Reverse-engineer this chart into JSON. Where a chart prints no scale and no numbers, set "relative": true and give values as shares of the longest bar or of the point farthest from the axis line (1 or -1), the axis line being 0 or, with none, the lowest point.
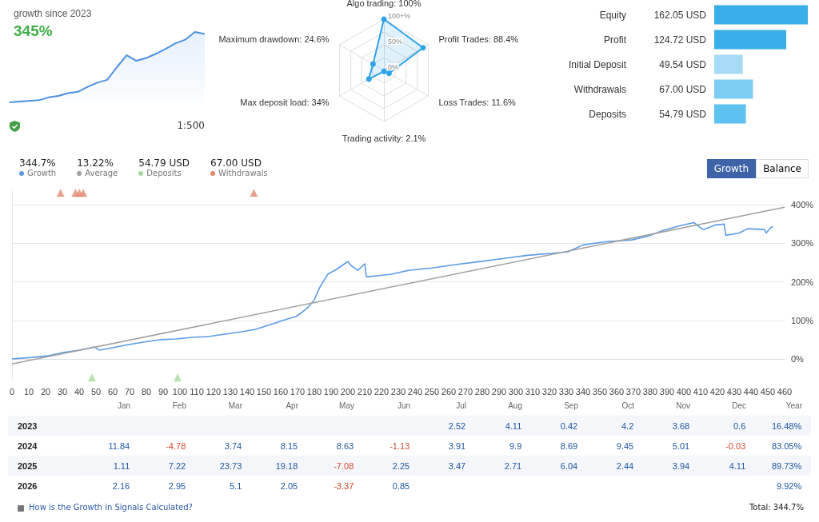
{
  "chart_data": [
    {
      "type": "area",
      "title": "growth since 2023",
      "subtitle": "345%",
      "relative": true,
      "color": "#4a90e2",
      "annotations": [
        "1:500"
      ],
      "categories": [
        null,
        null,
        null,
        null,
        null,
        null,
        null,
        null,
        null,
        null,
        null,
        null,
        null,
        null,
        null,
        null,
        null,
        null,
        null,
        null,
        null
      ],
      "values": [
        0,
        0.01,
        0.02,
        0.03,
        0.07,
        0.09,
        0.13,
        0.15,
        0.22,
        0.28,
        0.32,
        0.5,
        0.67,
        0.59,
        0.63,
        0.69,
        0.76,
        0.84,
        0.89,
        1,
        0.97
      ]
    },
    {
      "type": "radar",
      "categories": [
        "Algo trading: 100%",
        "Profit Trades: 88.4%",
        "Loss Trades: 11.6%",
        "Trading activity: 2.1%",
        "Max deposit load: 34%",
        "Maximum drawdown: 24.6%"
      ],
      "series": [
        {
          "color": "#2ea3e8",
          "values": [
            100,
            88.4,
            11.6,
            2.1,
            34,
            24.6
          ]
        }
      ],
      "ylim": [
        0,
        100
      ],
      "yticks": [
        {
          "value": 0,
          "label": "0%"
        },
        {
          "value": 50,
          "label": "50%"
        },
        {
          "value": 100,
          "label": "100+%"
        }
      ],
      "marker": "circle"
    },
    {
      "type": "bar",
      "orientation": "horizontal",
      "categories": [
        "Equity",
        "Profit",
        "Initial Deposit",
        "Withdrawals",
        "Deposits"
      ],
      "values": [
        162.05,
        124.72,
        49.54,
        67.0,
        54.79
      ],
      "colors": [
        "#3aaee9",
        "#3aaee9",
        "#a6dcf6",
        "#7dcdf3",
        "#5ec2f0"
      ],
      "value_labels": [
        "162.05 USD",
        "124.72 USD",
        "49.54 USD",
        "67.00 USD",
        "54.79 USD"
      ]
    },
    {
      "type": "line",
      "legend": "top left",
      "grid": "y",
      "line_style": "solid",
      "annotations": [
        "344.7%",
        "13.22%",
        "54.79 USD",
        "67.00 USD",
        "Growth",
        "Balance"
      ],
      "xlim": [
        0,
        460
      ],
      "xticks": [
        0,
        10,
        20,
        30,
        40,
        50,
        60,
        70,
        80,
        90,
        100,
        110,
        120,
        130,
        140,
        150,
        160,
        170,
        180,
        190,
        200,
        210,
        220,
        230,
        240,
        250,
        260,
        270,
        280,
        290,
        300,
        310,
        320,
        330,
        340,
        350,
        360,
        370,
        380,
        390,
        400,
        410,
        420,
        430,
        440,
        450,
        460
      ],
      "ylim": [
        -56,
        440
      ],
      "yticks": [
        {
          "value": 0,
          "label": "0%"
        },
        {
          "value": 100,
          "label": "100%"
        },
        {
          "value": 200,
          "label": "200%"
        },
        {
          "value": 300,
          "label": "300%"
        },
        {
          "value": 400,
          "label": "400%"
        }
      ],
      "series": [
        {
          "name": "Growth",
          "color": "#5b9be6",
          "marker": "none",
          "x": [
            0,
            12,
            21,
            31,
            40,
            45,
            49,
            52,
            60,
            69,
            79,
            88,
            98,
            107,
            117,
            126,
            136,
            145,
            155,
            164,
            169,
            173,
            176,
            180,
            183,
            188,
            193,
            198,
            200,
            202,
            206,
            210,
            211,
            217,
            226,
            236,
            250,
            264,
            279,
            293,
            307,
            321,
            331,
            340,
            355,
            369,
            379,
            388,
            398,
            406,
            410,
            412,
            419,
            424,
            425,
            433,
            438,
            448,
            449,
            452,
            453
          ],
          "values": [
            0,
            4,
            8,
            17,
            23,
            27,
            31,
            23,
            29,
            37,
            44,
            50,
            52,
            56,
            58,
            64,
            70,
            77,
            91,
            104,
            110,
            122,
            133,
            153,
            184,
            220,
            232,
            247,
            253,
            242,
            230,
            247,
            213,
            216,
            220,
            230,
            236,
            245,
            253,
            261,
            269,
            274,
            278,
            296,
            305,
            309,
            319,
            334,
            346,
            354,
            340,
            336,
            348,
            350,
            321,
            327,
            338,
            336,
            327,
            342,
            344
          ]
        },
        {
          "name": "Average",
          "color": "#a0a0a0",
          "marker": "none",
          "x": [
            0,
            460
          ],
          "values": [
            -13,
            394
          ]
        },
        {
          "name": "Deposits",
          "type": "scatter",
          "color": "#a8d8a0",
          "marker": "triangle",
          "x": [
            47.6,
            98.6
          ],
          "values": [
            -48,
            -48
          ]
        },
        {
          "name": "Withdrawals",
          "type": "scatter",
          "color": "#e08a70",
          "marker": "triangle",
          "x": [
            28.9,
            37.8,
            40.1,
            42.4,
            144
          ],
          "values": [
            431,
            431,
            431,
            431,
            431
          ]
        }
      ]
    },
    {
      "type": "heatmap",
      "categories": [
        "Jan",
        "Feb",
        "Mar",
        "Apr",
        "May",
        "Jun",
        "Jul",
        "Aug",
        "Sep",
        "Oct",
        "Nov",
        "Dec",
        "Year"
      ],
      "y_categories": [
        "2023",
        "2024",
        "2025",
        "2026"
      ],
      "cells": [
        [
          null,
          null,
          null,
          null,
          null,
          null,
          2.52,
          4.11,
          0.42,
          4.2,
          3.68,
          0.6,
          16.48
        ],
        [
          11.84,
          -4.78,
          3.74,
          8.15,
          8.63,
          -1.13,
          3.91,
          9.9,
          8.69,
          9.45,
          5.01,
          -0.03,
          83.05
        ],
        [
          1.11,
          7.22,
          23.73,
          19.18,
          -7.08,
          2.25,
          3.47,
          2.71,
          6.04,
          2.44,
          3.94,
          4.11,
          89.73
        ],
        [
          2.16,
          2.95,
          5.1,
          2.05,
          -3.37,
          0.85,
          null,
          null,
          null,
          null,
          null,
          null,
          9.92
        ]
      ],
      "cell_labels": [
        [
          null,
          null,
          null,
          null,
          null,
          null,
          "2.52",
          "4.11",
          "0.42",
          "4.2",
          "3.68",
          "0.6",
          "16.48%"
        ],
        [
          "11.84",
          "-4.78",
          "3.74",
          "8.15",
          "8.63",
          "-1.13",
          "3.91",
          "9.9",
          "8.69",
          "9.45",
          "5.01",
          "-0.03",
          "83.05%"
        ],
        [
          "1.11",
          "7.22",
          "23.73",
          "19.18",
          "-7.08",
          "2.25",
          "3.47",
          "2.71",
          "6.04",
          "2.44",
          "3.94",
          "4.11",
          "89.73%"
        ],
        [
          "2.16",
          "2.95",
          "5.1",
          "2.05",
          "-3.37",
          "0.85",
          null,
          null,
          null,
          null,
          null,
          null,
          "9.92%"
        ]
      ],
      "annotations": [
        "How is the Growth in Signals Calculated?",
        "Total: 344.7%"
      ]
    }
  ]
}
